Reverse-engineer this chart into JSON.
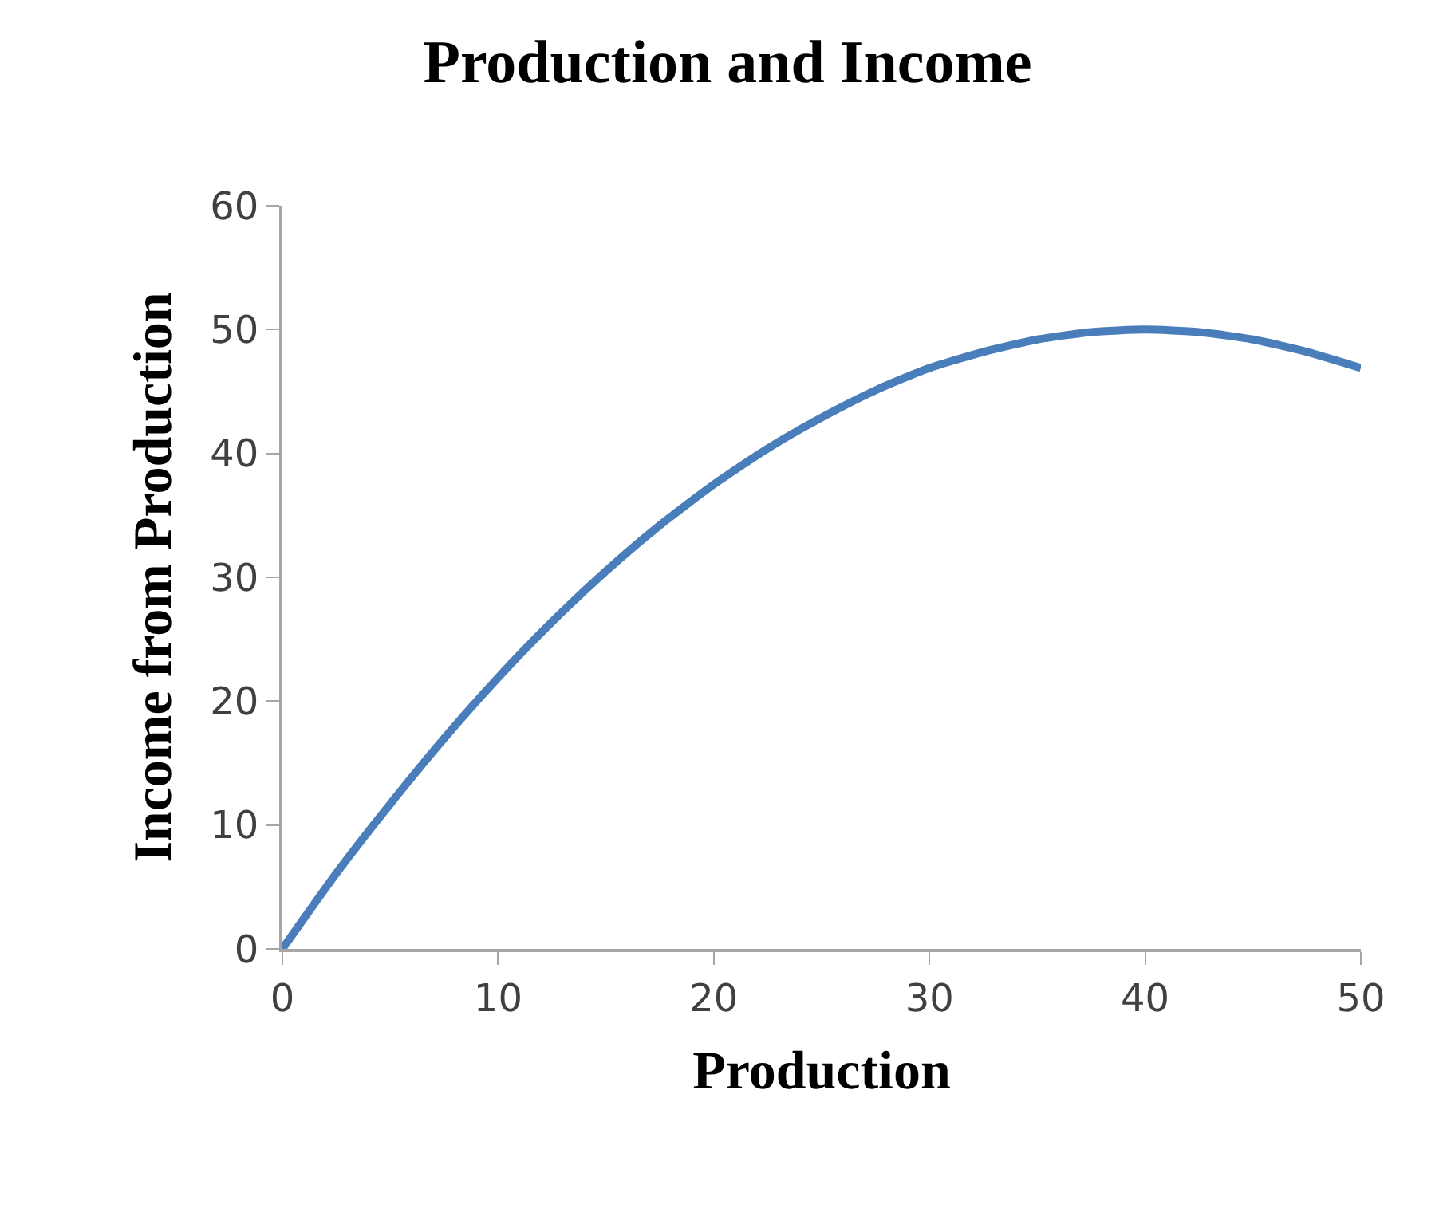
{
  "chart_data": {
    "type": "line",
    "title": "Production and Income",
    "xlabel": "Production",
    "ylabel": "Income from Production",
    "x": [
      0,
      2.5,
      5,
      7.5,
      10,
      12.5,
      15,
      17.5,
      20,
      22.5,
      25,
      27.5,
      30,
      32.5,
      35,
      37.5,
      40,
      42.5,
      45,
      47.5,
      50
    ],
    "series": [
      {
        "color": "#4a7ebb",
        "values": [
          0,
          6.1,
          11.7,
          17.0,
          21.9,
          26.4,
          30.5,
          34.2,
          37.5,
          40.4,
          42.9,
          45.1,
          46.9,
          48.2,
          49.2,
          49.8,
          50,
          49.8,
          49.2,
          48.2,
          46.9
        ]
      }
    ],
    "xlim": [
      0,
      50
    ],
    "xticks": [
      0,
      10,
      20,
      30,
      40,
      50
    ],
    "ylim": [
      0,
      60
    ],
    "yticks": [
      0,
      10,
      20,
      30,
      40,
      50,
      60
    ],
    "marker": "none",
    "line_style": "solid"
  }
}
